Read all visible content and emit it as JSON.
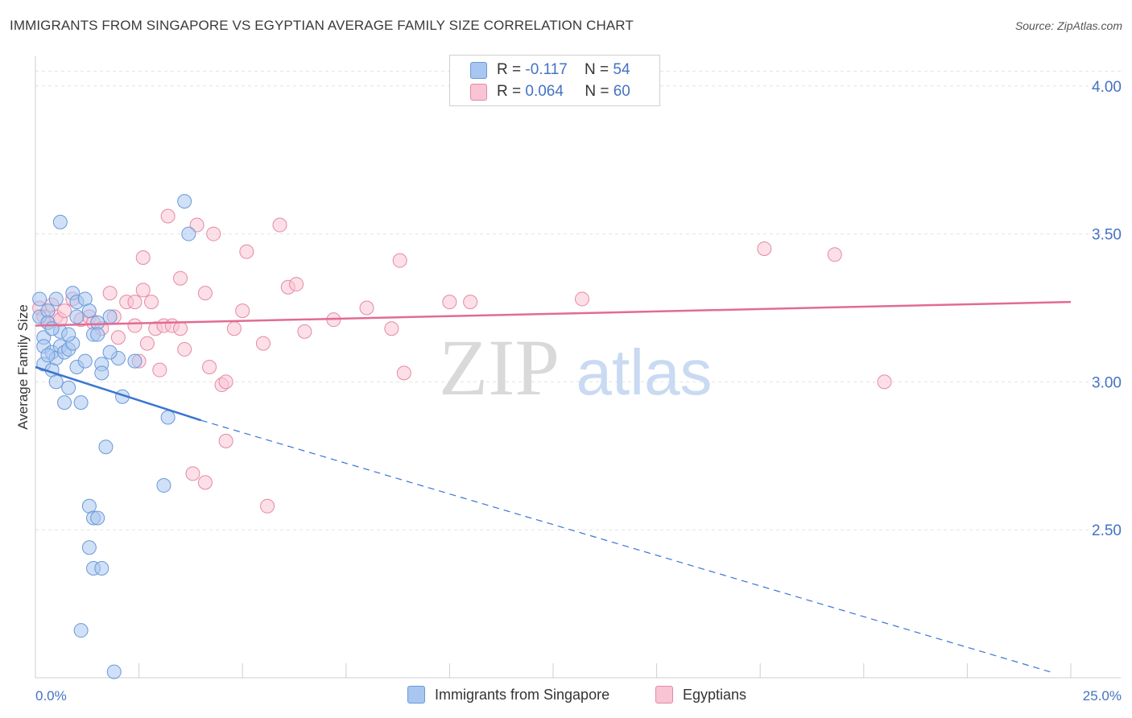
{
  "title": "IMMIGRANTS FROM SINGAPORE VS EGYPTIAN AVERAGE FAMILY SIZE CORRELATION CHART",
  "source": "Source: ZipAtlas.com",
  "watermark": {
    "zip": "ZIP",
    "atlas": "atlas"
  },
  "legend": {
    "r_label": "R =",
    "n_label": "N =",
    "series": [
      {
        "name": "Immigrants from Singapore",
        "r": "-0.117",
        "n": "54",
        "color": "#a9c6f0",
        "border": "#6a99d8"
      },
      {
        "name": "Egyptians",
        "r": "0.064",
        "n": "60",
        "color": "#f9c4d3",
        "border": "#e48aa6"
      }
    ]
  },
  "chart_data": {
    "type": "scatter",
    "title": "IMMIGRANTS FROM SINGAPORE VS EGYPTIAN AVERAGE FAMILY SIZE CORRELATION CHART",
    "xlabel": "",
    "ylabel": "Average Family Size",
    "xlim": [
      0,
      25
    ],
    "ylim": [
      2.0,
      4.1
    ],
    "x_tick_labels": [
      "0.0%",
      "25.0%"
    ],
    "y_ticks": [
      2.5,
      3.0,
      3.5,
      4.0
    ],
    "y_tick_labels": [
      "2.50",
      "3.00",
      "3.50",
      "4.00"
    ],
    "series": [
      {
        "name": "Immigrants from Singapore",
        "color": "#6a99d8",
        "trend": {
          "x0": 0.0,
          "y0": 3.05,
          "x1": 4.0,
          "y1": 2.87,
          "dash_to_x": 24.5,
          "dash_to_y": 2.02,
          "color": "#3a75d0"
        },
        "points": [
          [
            0.1,
            3.28
          ],
          [
            0.1,
            3.22
          ],
          [
            0.2,
            3.15
          ],
          [
            0.2,
            3.12
          ],
          [
            0.2,
            3.06
          ],
          [
            0.3,
            3.24
          ],
          [
            0.3,
            3.2
          ],
          [
            0.4,
            3.04
          ],
          [
            0.4,
            3.1
          ],
          [
            0.5,
            3.08
          ],
          [
            0.5,
            3.0
          ],
          [
            0.6,
            3.17
          ],
          [
            0.6,
            3.12
          ],
          [
            0.7,
            3.1
          ],
          [
            0.7,
            2.93
          ],
          [
            0.8,
            3.11
          ],
          [
            0.8,
            2.98
          ],
          [
            0.9,
            3.13
          ],
          [
            0.9,
            3.3
          ],
          [
            1.0,
            3.27
          ],
          [
            1.0,
            3.22
          ],
          [
            1.1,
            2.93
          ],
          [
            1.2,
            3.28
          ],
          [
            1.3,
            3.24
          ],
          [
            1.4,
            3.16
          ],
          [
            1.5,
            3.2
          ],
          [
            1.6,
            3.06
          ],
          [
            1.6,
            3.03
          ],
          [
            1.7,
            2.78
          ],
          [
            1.8,
            3.22
          ],
          [
            2.0,
            3.08
          ],
          [
            2.1,
            2.95
          ],
          [
            0.6,
            3.54
          ],
          [
            3.6,
            3.61
          ],
          [
            3.7,
            3.5
          ],
          [
            0.8,
            3.16
          ],
          [
            1.0,
            3.05
          ],
          [
            1.2,
            3.07
          ],
          [
            0.4,
            3.18
          ],
          [
            0.5,
            3.28
          ],
          [
            3.2,
            2.88
          ],
          [
            1.8,
            3.1
          ],
          [
            1.3,
            2.58
          ],
          [
            1.4,
            2.54
          ],
          [
            1.5,
            2.54
          ],
          [
            3.1,
            2.65
          ],
          [
            1.3,
            2.44
          ],
          [
            1.4,
            2.37
          ],
          [
            1.6,
            2.37
          ],
          [
            1.1,
            2.16
          ],
          [
            1.9,
            2.02
          ],
          [
            1.5,
            3.16
          ],
          [
            2.4,
            3.07
          ],
          [
            0.3,
            3.09
          ]
        ]
      },
      {
        "name": "Egyptians",
        "color": "#e48aa6",
        "trend": {
          "x0": 0.0,
          "y0": 3.19,
          "x1": 25.0,
          "y1": 3.27,
          "color": "#e26b94"
        },
        "points": [
          [
            0.1,
            3.25
          ],
          [
            0.2,
            3.22
          ],
          [
            0.3,
            3.2
          ],
          [
            0.4,
            3.26
          ],
          [
            0.5,
            3.22
          ],
          [
            0.6,
            3.21
          ],
          [
            0.7,
            3.24
          ],
          [
            0.9,
            3.28
          ],
          [
            1.1,
            3.21
          ],
          [
            1.3,
            3.22
          ],
          [
            1.4,
            3.2
          ],
          [
            1.6,
            3.18
          ],
          [
            1.8,
            3.3
          ],
          [
            1.9,
            3.22
          ],
          [
            2.0,
            3.15
          ],
          [
            2.2,
            3.27
          ],
          [
            2.4,
            3.27
          ],
          [
            2.6,
            3.31
          ],
          [
            2.8,
            3.27
          ],
          [
            2.6,
            3.42
          ],
          [
            2.4,
            3.19
          ],
          [
            2.5,
            3.07
          ],
          [
            2.7,
            3.13
          ],
          [
            2.9,
            3.18
          ],
          [
            3.1,
            3.19
          ],
          [
            3.3,
            3.19
          ],
          [
            3.5,
            3.18
          ],
          [
            3.2,
            3.56
          ],
          [
            3.5,
            3.35
          ],
          [
            3.6,
            3.11
          ],
          [
            3.9,
            3.53
          ],
          [
            4.1,
            3.3
          ],
          [
            4.2,
            3.05
          ],
          [
            4.3,
            3.5
          ],
          [
            4.5,
            2.99
          ],
          [
            4.6,
            3.0
          ],
          [
            4.8,
            3.18
          ],
          [
            5.0,
            3.24
          ],
          [
            5.1,
            3.44
          ],
          [
            5.5,
            3.13
          ],
          [
            5.9,
            3.53
          ],
          [
            6.1,
            3.32
          ],
          [
            6.3,
            3.33
          ],
          [
            6.5,
            3.17
          ],
          [
            7.2,
            3.21
          ],
          [
            8.0,
            3.25
          ],
          [
            8.6,
            3.18
          ],
          [
            8.8,
            3.41
          ],
          [
            8.9,
            3.03
          ],
          [
            10.0,
            3.27
          ],
          [
            10.5,
            3.27
          ],
          [
            13.2,
            3.28
          ],
          [
            17.6,
            3.45
          ],
          [
            19.3,
            3.43
          ],
          [
            20.5,
            3.0
          ],
          [
            3.8,
            2.69
          ],
          [
            4.1,
            2.66
          ],
          [
            4.6,
            2.8
          ],
          [
            5.6,
            2.58
          ],
          [
            3.0,
            3.04
          ]
        ]
      }
    ]
  }
}
